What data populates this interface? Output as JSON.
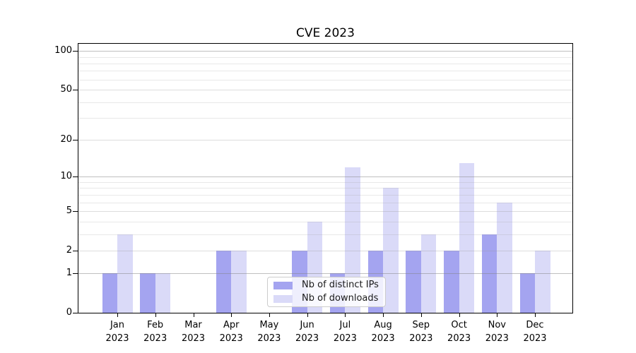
{
  "title": "CVE 2023",
  "chart_data": {
    "type": "bar",
    "title": "CVE 2023",
    "categories": [
      "Jan 2023",
      "Feb 2023",
      "Mar 2023",
      "Apr 2023",
      "May 2023",
      "Jun 2023",
      "Jul 2023",
      "Aug 2023",
      "Sep 2023",
      "Oct 2023",
      "Nov 2023",
      "Dec 2023"
    ],
    "series": [
      {
        "name": "Nb of distinct IPs",
        "color": "#a4a4f0",
        "values": [
          1,
          1,
          0,
          2,
          0,
          2,
          1,
          2,
          2,
          2,
          3,
          1
        ]
      },
      {
        "name": "Nb of downloads",
        "color": "#dadaf8",
        "values": [
          3,
          1,
          0,
          2,
          0,
          4,
          12,
          8,
          3,
          13,
          6,
          2
        ]
      }
    ],
    "xlabel": "",
    "ylabel": "",
    "yscale": "log1p",
    "ylim": [
      0,
      113.5
    ],
    "yticks": [
      0,
      1,
      2,
      5,
      10,
      20,
      50,
      100
    ],
    "minor_yticks": [
      3,
      4,
      6,
      7,
      8,
      9,
      30,
      40,
      60,
      70,
      80,
      90
    ],
    "grid": "on",
    "legend_position": "lower center"
  }
}
